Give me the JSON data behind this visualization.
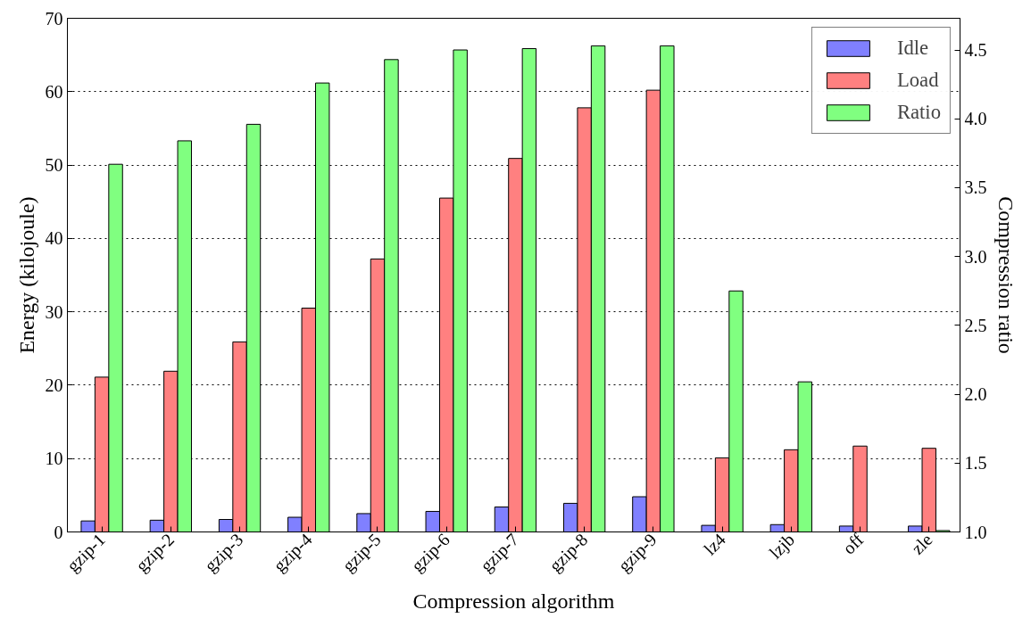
{
  "chart_data": {
    "type": "bar",
    "xlabel": "Compression algorithm",
    "ylabel": "Energy (kilojoule)",
    "y2label": "Compression ratio",
    "categories": [
      "gzip-1",
      "gzip-2",
      "gzip-3",
      "gzip-4",
      "gzip-5",
      "gzip-6",
      "gzip-7",
      "gzip-8",
      "gzip-9",
      "lz4",
      "lzjb",
      "off",
      "zle"
    ],
    "series": [
      {
        "name": "Idle",
        "color": "#8080ff",
        "values": [
          1.5,
          1.6,
          1.7,
          2.0,
          2.5,
          2.8,
          3.4,
          3.9,
          4.8,
          0.9,
          1.0,
          0.8,
          0.8
        ]
      },
      {
        "name": "Load",
        "color": "#ff8080",
        "values": [
          21.1,
          21.9,
          25.9,
          30.5,
          37.2,
          45.5,
          50.9,
          57.8,
          60.2,
          10.1,
          11.2,
          11.7,
          11.4
        ]
      },
      {
        "name": "Ratio",
        "color": "#80ff80",
        "axis": "y2",
        "values": [
          3.67,
          3.84,
          3.96,
          4.26,
          4.43,
          4.5,
          4.51,
          4.53,
          4.53,
          2.75,
          2.09,
          null,
          1.01
        ]
      }
    ],
    "ylim": [
      0,
      70
    ],
    "yticks": [
      0,
      10,
      20,
      30,
      40,
      50,
      60,
      70
    ],
    "y2lim": [
      1.0,
      4.73
    ],
    "y2ticks": [
      {
        "value": 1.0,
        "label": "1.0"
      },
      {
        "value": 1.5,
        "label": "1.5"
      },
      {
        "value": 2.0,
        "label": "2.0"
      },
      {
        "value": 2.5,
        "label": "2.5"
      },
      {
        "value": 3.0,
        "label": "3.0"
      },
      {
        "value": 3.5,
        "label": "3.5"
      },
      {
        "value": 4.0,
        "label": "4.0"
      },
      {
        "value": 4.5,
        "label": "4.5"
      }
    ],
    "grid": "y",
    "legend": "top right"
  }
}
